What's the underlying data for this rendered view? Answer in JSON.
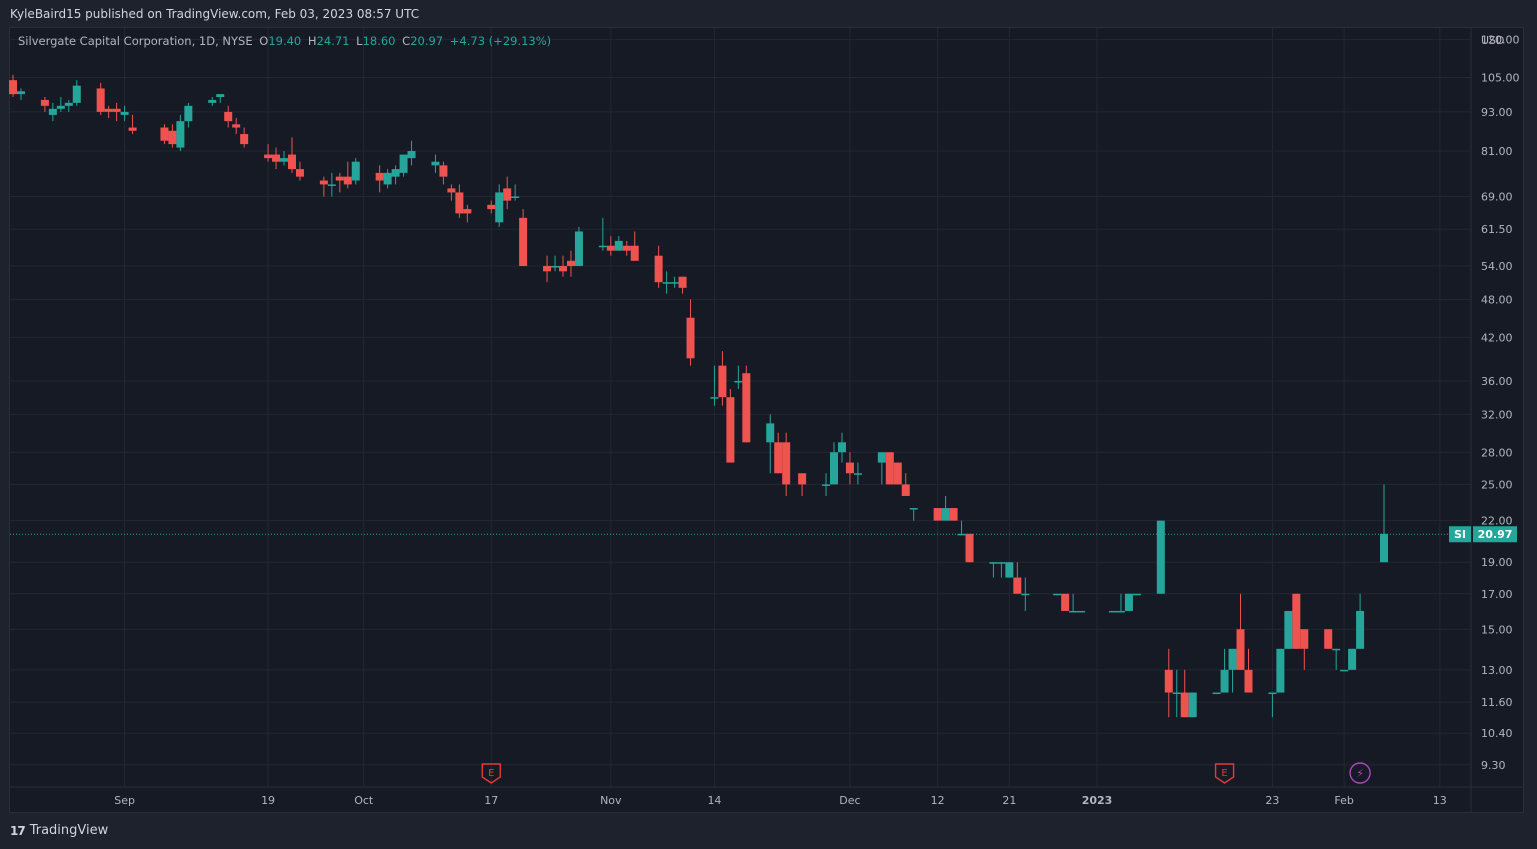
{
  "header": {
    "published": "KyleBaird15 published on TradingView.com, Feb 03, 2023 08:57 UTC"
  },
  "legend": {
    "name": "Silvergate Capital Corporation, 1D, NYSE",
    "o_label": "O",
    "o": "19.40",
    "h_label": "H",
    "h": "24.71",
    "l_label": "L",
    "l": "18.60",
    "c_label": "C",
    "c": "20.97",
    "change": "+4.73 (+29.13%)"
  },
  "footer": {
    "brand": "TradingView",
    "logo": "17"
  },
  "colors": {
    "up": "#26a69a",
    "down": "#ef5350",
    "bg": "#161a25",
    "grid": "#232735",
    "text": "#b2b5be",
    "event_earnings": "#e53935",
    "event_split": "#ab47bc"
  },
  "chart_data": {
    "type": "candlestick",
    "currency": "USD",
    "scale": "log",
    "ylim": [
      8.6,
      125
    ],
    "y_ticks": [
      "120.00",
      "105.00",
      "93.00",
      "81.00",
      "69.00",
      "61.50",
      "54.00",
      "48.00",
      "42.00",
      "36.00",
      "32.00",
      "28.00",
      "25.00",
      "22.00",
      "19.00",
      "17.00",
      "15.00",
      "13.00",
      "11.60",
      "10.40",
      "9.30"
    ],
    "x_ticks": [
      "Sep",
      "19",
      "Oct",
      "17",
      "Nov",
      "14",
      "Dec",
      "12",
      "21",
      "2023",
      "23",
      "Feb",
      "13"
    ],
    "x_ticks_bold": [
      "2023"
    ],
    "last_price": {
      "symbol": "SI",
      "value": "20.97"
    },
    "events": [
      {
        "type": "earnings",
        "label": "E",
        "date": "2022-10-17"
      },
      {
        "type": "earnings",
        "label": "E",
        "date": "2023-01-17"
      },
      {
        "type": "dividend-split",
        "label": "⚡",
        "date": "2023-02-03"
      }
    ],
    "candles": [
      [
        "2022-08-18",
        104,
        106,
        98,
        99
      ],
      [
        "2022-08-19",
        99,
        101,
        97,
        100
      ],
      [
        "2022-08-22",
        97,
        98,
        93,
        95
      ],
      [
        "2022-08-23",
        92,
        96,
        90,
        94
      ],
      [
        "2022-08-24",
        94,
        98,
        93,
        95
      ],
      [
        "2022-08-25",
        95,
        97,
        93,
        96
      ],
      [
        "2022-08-26",
        96,
        104,
        95,
        102
      ],
      [
        "2022-08-29",
        101,
        103,
        92,
        93
      ],
      [
        "2022-08-30",
        94,
        95,
        91,
        93
      ],
      [
        "2022-08-31",
        94,
        96,
        90,
        93
      ],
      [
        "2022-09-01",
        92,
        95,
        90,
        93
      ],
      [
        "2022-09-02",
        88,
        92,
        86,
        87
      ],
      [
        "2022-09-06",
        88,
        89,
        83,
        84
      ],
      [
        "2022-09-07",
        87,
        89,
        82,
        83
      ],
      [
        "2022-09-08",
        82,
        92,
        81,
        90
      ],
      [
        "2022-09-09",
        90,
        96,
        88,
        95
      ],
      [
        "2022-09-12",
        96,
        98,
        95,
        97
      ],
      [
        "2022-09-13",
        98,
        99,
        96,
        99
      ],
      [
        "2022-09-14",
        93,
        95,
        88,
        90
      ],
      [
        "2022-09-15",
        89,
        91,
        86,
        88
      ],
      [
        "2022-09-16",
        86,
        88,
        82,
        83
      ],
      [
        "2022-09-19",
        80,
        83,
        78,
        79
      ],
      [
        "2022-09-20",
        80,
        82,
        76,
        78
      ],
      [
        "2022-09-21",
        78,
        81,
        77,
        79
      ],
      [
        "2022-09-22",
        80,
        85,
        75,
        76
      ],
      [
        "2022-09-23",
        76,
        78,
        73,
        74
      ],
      [
        "2022-09-26",
        73,
        74,
        69,
        72
      ],
      [
        "2022-09-27",
        72,
        75,
        69,
        72
      ],
      [
        "2022-09-28",
        74,
        75,
        70,
        73
      ],
      [
        "2022-09-29",
        74,
        78,
        71,
        72
      ],
      [
        "2022-09-30",
        73,
        79,
        72,
        78
      ],
      [
        "2022-10-03",
        75,
        77,
        70,
        73
      ],
      [
        "2022-10-04",
        72,
        76,
        71,
        75
      ],
      [
        "2022-10-05",
        74,
        77,
        72,
        76
      ],
      [
        "2022-10-06",
        75,
        80,
        74,
        80
      ],
      [
        "2022-10-07",
        79,
        84,
        77,
        81
      ],
      [
        "2022-10-10",
        77,
        80,
        75,
        78
      ],
      [
        "2022-10-11",
        77,
        78,
        72,
        74
      ],
      [
        "2022-10-12",
        71,
        72,
        68,
        70
      ],
      [
        "2022-10-13",
        70,
        72,
        64,
        65
      ],
      [
        "2022-10-14",
        66,
        67,
        63,
        65
      ],
      [
        "2022-10-17",
        67,
        68,
        65,
        66
      ],
      [
        "2022-10-18",
        63,
        72,
        62,
        70
      ],
      [
        "2022-10-19",
        71,
        74,
        66,
        68
      ],
      [
        "2022-10-20",
        69,
        72,
        68,
        69
      ],
      [
        "2022-10-21",
        64,
        66,
        54,
        54
      ],
      [
        "2022-10-24",
        54,
        56,
        51,
        53
      ],
      [
        "2022-10-25",
        54,
        56,
        53,
        54
      ],
      [
        "2022-10-26",
        54,
        56,
        52,
        53
      ],
      [
        "2022-10-27",
        55,
        57,
        52,
        54
      ],
      [
        "2022-10-28",
        54,
        62,
        54,
        61
      ],
      [
        "2022-10-31",
        58,
        64,
        57,
        58
      ],
      [
        "2022-11-01",
        58,
        60,
        56,
        57
      ],
      [
        "2022-11-02",
        57,
        60,
        57,
        59
      ],
      [
        "2022-11-03",
        58,
        59,
        56,
        57
      ],
      [
        "2022-11-04",
        58,
        61,
        55,
        55
      ],
      [
        "2022-11-07",
        56,
        58,
        50,
        51
      ],
      [
        "2022-11-08",
        51,
        53,
        49,
        51
      ],
      [
        "2022-11-09",
        51,
        52,
        50,
        51
      ],
      [
        "2022-11-10",
        52,
        52,
        49,
        50
      ],
      [
        "2022-11-11",
        45,
        48,
        38,
        39
      ],
      [
        "2022-11-14",
        34,
        38,
        33,
        34
      ],
      [
        "2022-11-15",
        38,
        40,
        33,
        34
      ],
      [
        "2022-11-16",
        34,
        35,
        27,
        27
      ],
      [
        "2022-11-17",
        36,
        38,
        35,
        36
      ],
      [
        "2022-11-18",
        37,
        38,
        29,
        29
      ],
      [
        "2022-11-21",
        29,
        32,
        26,
        31
      ],
      [
        "2022-11-22",
        29,
        30,
        26,
        26
      ],
      [
        "2022-11-23",
        29,
        30,
        24,
        25
      ],
      [
        "2022-11-25",
        26,
        26,
        24,
        25
      ],
      [
        "2022-11-28",
        25,
        26,
        24,
        25
      ],
      [
        "2022-11-29",
        25,
        29,
        25,
        28
      ],
      [
        "2022-11-30",
        28,
        30,
        27,
        29
      ],
      [
        "2022-12-01",
        27,
        28,
        25,
        26
      ],
      [
        "2022-12-02",
        26,
        27,
        25,
        26
      ],
      [
        "2022-12-05",
        27,
        28,
        25,
        28
      ],
      [
        "2022-12-06",
        28,
        28,
        25,
        25
      ],
      [
        "2022-12-07",
        27,
        27,
        25,
        25
      ],
      [
        "2022-12-08",
        25,
        26,
        24,
        24
      ],
      [
        "2022-12-09",
        23,
        23,
        22,
        23
      ],
      [
        "2022-12-12",
        23,
        23,
        22,
        22
      ],
      [
        "2022-12-13",
        22,
        24,
        22,
        23
      ],
      [
        "2022-12-14",
        23,
        23,
        22,
        22
      ],
      [
        "2022-12-15",
        21,
        22,
        21,
        21
      ],
      [
        "2022-12-16",
        21,
        21,
        19,
        19
      ],
      [
        "2022-12-19",
        19,
        19,
        18,
        19
      ],
      [
        "2022-12-20",
        19,
        19,
        18,
        19
      ],
      [
        "2022-12-21",
        18,
        19,
        18,
        19
      ],
      [
        "2022-12-22",
        18,
        19,
        17,
        17
      ],
      [
        "2022-12-23",
        17,
        18,
        16,
        17
      ],
      [
        "2022-12-27",
        17,
        17,
        17,
        17
      ],
      [
        "2022-12-28",
        17,
        17,
        16,
        16
      ],
      [
        "2022-12-29",
        16,
        17,
        16,
        16
      ],
      [
        "2022-12-30",
        16,
        16,
        16,
        16
      ],
      [
        "2023-01-03",
        16,
        16,
        16,
        16
      ],
      [
        "2023-01-04",
        16,
        17,
        16,
        16
      ],
      [
        "2023-01-05",
        16,
        17,
        16,
        17
      ],
      [
        "2023-01-06",
        17,
        17,
        17,
        17
      ],
      [
        "2023-01-09",
        17,
        22,
        17,
        22
      ],
      [
        "2023-01-10",
        13,
        14,
        11,
        12
      ],
      [
        "2023-01-11",
        12,
        13,
        11,
        12
      ],
      [
        "2023-01-12",
        12,
        13,
        11,
        11
      ],
      [
        "2023-01-13",
        11,
        12,
        11,
        12
      ],
      [
        "2023-01-16",
        12,
        12,
        12,
        12
      ],
      [
        "2023-01-17",
        12,
        14,
        12,
        13
      ],
      [
        "2023-01-18",
        13,
        14,
        12,
        14
      ],
      [
        "2023-01-19",
        15,
        17,
        13,
        13
      ],
      [
        "2023-01-20",
        13,
        14,
        12,
        12
      ],
      [
        "2023-01-23",
        12,
        12,
        11,
        12
      ],
      [
        "2023-01-24",
        12,
        14,
        12,
        14
      ],
      [
        "2023-01-25",
        14,
        16,
        14,
        16
      ],
      [
        "2023-01-26",
        17,
        17,
        14,
        14
      ],
      [
        "2023-01-27",
        15,
        15,
        13,
        14
      ],
      [
        "2023-01-30",
        15,
        15,
        14,
        14
      ],
      [
        "2023-01-31",
        14,
        14,
        13,
        14
      ],
      [
        "2023-02-01",
        13,
        13,
        13,
        13
      ],
      [
        "2023-02-02",
        13,
        14,
        13,
        14
      ],
      [
        "2023-02-03",
        14,
        17,
        14,
        16
      ],
      [
        "2023-02-06",
        19,
        25,
        19,
        21
      ]
    ]
  }
}
